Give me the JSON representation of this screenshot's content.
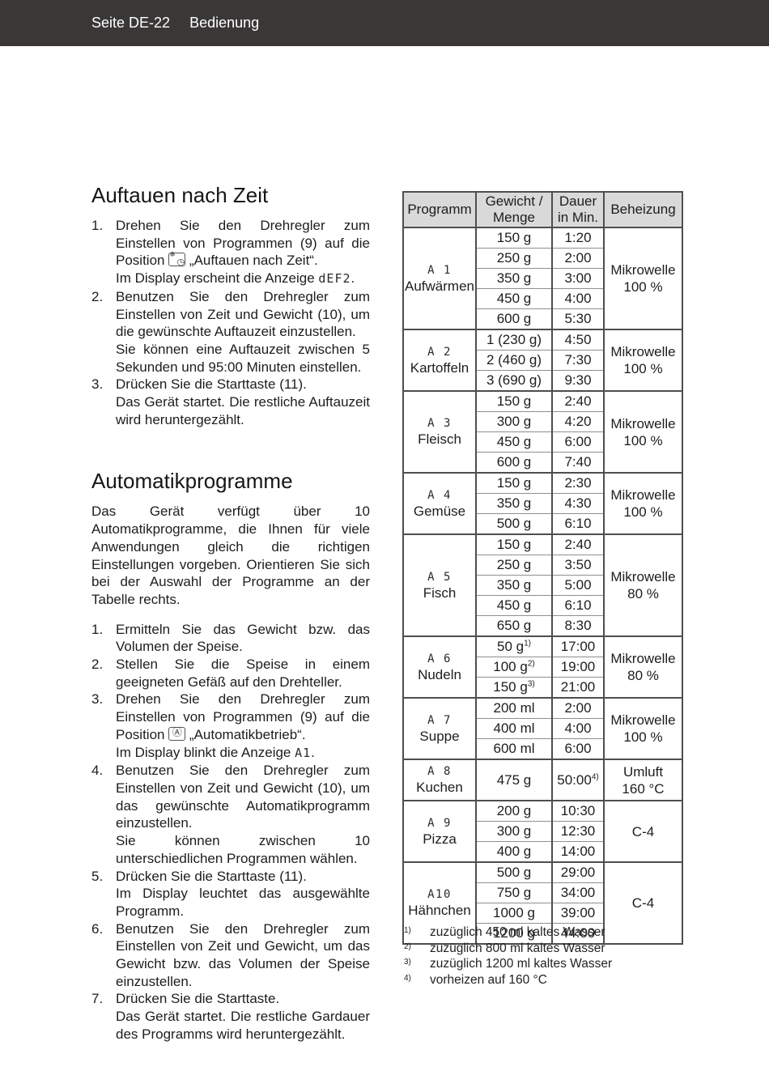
{
  "topbar": {
    "left": "Seite DE-22",
    "right": "Bedienung",
    "bg": "#3a3737",
    "fg": "#ffffff"
  },
  "section1": {
    "title": "Auftauen nach Zeit",
    "steps": [
      {
        "num": "1.",
        "paras": [
          [
            {
              "text": "Drehen Sie den Drehregler zum Einstellen von Programmen (9) auf die Position "
            },
            {
              "icon": "defrost-time-icon"
            },
            {
              "text": " „Auftauen nach Zeit“."
            }
          ],
          [
            {
              "text": "Im Display erscheint die Anzeige "
            },
            {
              "lcd": "dEF2"
            },
            {
              "text": "."
            }
          ]
        ]
      },
      {
        "num": "2.",
        "paras": [
          [
            {
              "text": "Benutzen Sie den Drehregler zum Einstellen von Zeit und Gewicht (10), um die gewünschte Auftauzeit einzustellen."
            }
          ],
          [
            {
              "text": "Sie können eine Auftauzeit zwischen 5 Sekunden und 95:00 Minuten einstellen."
            }
          ]
        ]
      },
      {
        "num": "3.",
        "paras": [
          [
            {
              "text": "Drücken Sie die Starttaste (11)."
            }
          ],
          [
            {
              "text": "Das Gerät startet. Die restliche Auftauzeit wird heruntergezählt."
            }
          ]
        ]
      }
    ]
  },
  "section2": {
    "title": "Automatikprogramme",
    "intro": "Das Gerät verfügt über 10 Automatikprogramme, die Ihnen für viele Anwendungen gleich die richtigen Einstellungen vorgeben. Orientieren Sie sich bei der Auswahl der Programme an der Tabelle rechts.",
    "steps": [
      {
        "num": "1.",
        "paras": [
          [
            {
              "text": "Ermitteln Sie das Gewicht bzw. das Volumen der Speise."
            }
          ]
        ]
      },
      {
        "num": "2.",
        "paras": [
          [
            {
              "text": "Stellen Sie die Speise in einem geeigneten Gefäß auf den Drehteller."
            }
          ]
        ]
      },
      {
        "num": "3.",
        "paras": [
          [
            {
              "text": "Drehen Sie den Drehregler zum Einstellen von Programmen (9) auf die Position "
            },
            {
              "icon": "auto-program-icon"
            },
            {
              "text": " „Automatikbetrieb“."
            }
          ],
          [
            {
              "text": "Im Display blinkt die Anzeige "
            },
            {
              "lcd": "A1"
            },
            {
              "text": "."
            }
          ]
        ]
      },
      {
        "num": "4.",
        "paras": [
          [
            {
              "text": "Benutzen Sie den Drehregler zum Einstellen von Zeit und Gewicht (10), um das gewünschte Automatikprogramm einzustellen."
            }
          ],
          [
            {
              "text": "Sie können zwischen 10 unterschiedlichen Programmen wählen."
            }
          ]
        ]
      },
      {
        "num": "5.",
        "paras": [
          [
            {
              "text": "Drücken Sie die Starttaste (11)."
            }
          ],
          [
            {
              "text": "Im Display leuchtet das ausgewählte Programm."
            }
          ]
        ]
      },
      {
        "num": "6.",
        "paras": [
          [
            {
              "text": "Benutzen Sie den Drehregler zum Einstellen von Zeit und Gewicht, um das Gewicht bzw. das Volumen der Speise einzustellen."
            }
          ]
        ]
      },
      {
        "num": "7.",
        "paras": [
          [
            {
              "text": "Drücken Sie die Starttaste."
            }
          ],
          [
            {
              "text": "Das Gerät startet. Die restliche Gardauer des Programms wird heruntergezählt."
            }
          ]
        ]
      }
    ]
  },
  "table": {
    "headers": [
      [
        "Programm"
      ],
      [
        "Gewicht /",
        "Menge"
      ],
      [
        "Dauer",
        "in Min."
      ],
      [
        "Beheizung"
      ]
    ],
    "header_bg": "#d9d9d9",
    "groups": [
      {
        "code": "A 1",
        "name": "Aufwärmen",
        "heating": [
          "Mikrowelle",
          "100 %"
        ],
        "rows": [
          {
            "w": "150 g",
            "d": "1:20"
          },
          {
            "w": "250 g",
            "d": "2:00"
          },
          {
            "w": "350 g",
            "d": "3:00"
          },
          {
            "w": "450 g",
            "d": "4:00"
          },
          {
            "w": "600 g",
            "d": "5:30"
          }
        ]
      },
      {
        "code": "A 2",
        "name": "Kartoffeln",
        "heating": [
          "Mikrowelle",
          "100 %"
        ],
        "rows": [
          {
            "w": "1 (230 g)",
            "d": "4:50"
          },
          {
            "w": "2 (460 g)",
            "d": "7:30"
          },
          {
            "w": "3 (690 g)",
            "d": "9:30"
          }
        ]
      },
      {
        "code": "A 3",
        "name": "Fleisch",
        "heating": [
          "Mikrowelle",
          "100 %"
        ],
        "rows": [
          {
            "w": "150 g",
            "d": "2:40"
          },
          {
            "w": "300 g",
            "d": "4:20"
          },
          {
            "w": "450 g",
            "d": "6:00"
          },
          {
            "w": "600 g",
            "d": "7:40"
          }
        ]
      },
      {
        "code": "A 4",
        "name": "Gemüse",
        "heating": [
          "Mikrowelle",
          "100 %"
        ],
        "rows": [
          {
            "w": "150 g",
            "d": "2:30"
          },
          {
            "w": "350 g",
            "d": "4:30"
          },
          {
            "w": "500 g",
            "d": "6:10"
          }
        ]
      },
      {
        "code": "A 5",
        "name": "Fisch",
        "heating": [
          "Mikrowelle",
          "80 %"
        ],
        "rows": [
          {
            "w": "150 g",
            "d": "2:40"
          },
          {
            "w": "250 g",
            "d": "3:50"
          },
          {
            "w": "350 g",
            "d": "5:00"
          },
          {
            "w": "450 g",
            "d": "6:10"
          },
          {
            "w": "650 g",
            "d": "8:30"
          }
        ]
      },
      {
        "code": "A 6",
        "name": "Nudeln",
        "heating": [
          "Mikrowelle",
          "80 %"
        ],
        "rows": [
          {
            "w": "50 g",
            "wsup": "1)",
            "d": "17:00"
          },
          {
            "w": "100 g",
            "wsup": "2)",
            "d": "19:00"
          },
          {
            "w": "150 g",
            "wsup": "3)",
            "d": "21:00"
          }
        ]
      },
      {
        "code": "A 7",
        "name": "Suppe",
        "heating": [
          "Mikrowelle",
          "100 %"
        ],
        "rows": [
          {
            "w": "200 ml",
            "d": "2:00"
          },
          {
            "w": "400 ml",
            "d": "4:00"
          },
          {
            "w": "600 ml",
            "d": "6:00"
          }
        ]
      },
      {
        "code": "A 8",
        "name": "Kuchen",
        "heating": [
          "Umluft",
          "160 °C"
        ],
        "rows": [
          {
            "w": "475 g",
            "d": "50:00",
            "dsup": "4)"
          }
        ]
      },
      {
        "code": "A 9",
        "name": "Pizza",
        "heating": [
          "C-4"
        ],
        "rows": [
          {
            "w": "200 g",
            "d": "10:30"
          },
          {
            "w": "300 g",
            "d": "12:30"
          },
          {
            "w": "400 g",
            "d": "14:00"
          }
        ]
      },
      {
        "code": "A10",
        "name": "Hähnchen",
        "heating": [
          "C-4"
        ],
        "rows": [
          {
            "w": "500 g",
            "d": "29:00"
          },
          {
            "w": "750 g",
            "d": "34:00"
          },
          {
            "w": "1000 g",
            "d": "39:00"
          },
          {
            "w": "1200 g",
            "d": "44:00"
          }
        ]
      }
    ]
  },
  "footnotes": [
    {
      "sup": "1)",
      "text": "zuzüglich 450 ml kaltes Wasser"
    },
    {
      "sup": "2)",
      "text": "zuzüglich 800 ml kaltes Wasser"
    },
    {
      "sup": "3)",
      "text": "zuzüglich 1200 ml kaltes Wasser"
    },
    {
      "sup": "4)",
      "text": "vorheizen auf 160 °C"
    }
  ],
  "icons": {
    "defrost-time-icon": "snowflake-clock",
    "auto-program-icon": "circled-A"
  }
}
